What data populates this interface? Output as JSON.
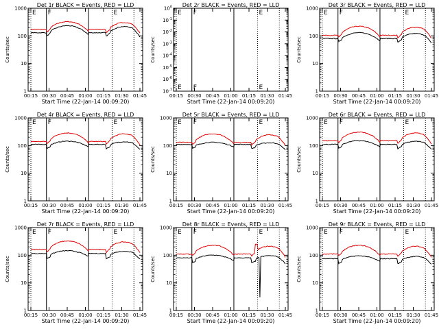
{
  "chart_data": {
    "type": "line",
    "layout": "3x3 grid of panels",
    "x_ticks": [
      "00:15",
      "00:30",
      "00:45",
      "01:00",
      "01:15",
      "01:30",
      "01:45"
    ],
    "xlabel": "Start Time (22-Jan-14 00:09:20)",
    "ylabel": "Counts/sec",
    "ylog": true,
    "colors": {
      "events": "#000000",
      "lld": "#e00000"
    },
    "series_names": [
      "BLACK = Events",
      "RED = LLD"
    ],
    "panels": [
      {
        "title": "Det 1r BLACK = Events, RED = LLD",
        "yticks": [
          "1",
          "10",
          "100",
          "1000"
        ],
        "ylim": [
          1,
          1000
        ],
        "markers": [
          {
            "label": "E",
            "x": 0.0
          },
          {
            "label": "F",
            "x": 0.143
          },
          {
            "label": "E",
            "x": 0.745
          }
        ],
        "solid_lines": [
          0.143,
          0.528
        ],
        "dotted_lines": [
          0.745,
          0.945
        ],
        "events": {
          "base": 130,
          "amp": 0.38,
          "dip": 0.27
        },
        "lld": {
          "base": 170,
          "amp": 0.42,
          "dip": 0.25
        }
      },
      {
        "title": "Det 2r BLACK = Events, RED = LLD",
        "yticks": [
          "10^-7",
          "10^-6",
          "10^-5",
          "10^-4",
          "10^-3",
          "10^-2",
          "10^-1",
          "10^0"
        ],
        "ylim": [
          1e-07,
          1
        ],
        "markers": [
          {
            "label": "E",
            "x": 0.0
          },
          {
            "label": "F",
            "x": 0.143
          },
          {
            "label": "E",
            "x": 0.745
          }
        ],
        "solid_lines": [
          0.143,
          0.528
        ],
        "dotted_lines": [
          0.745,
          0.945
        ],
        "events": null,
        "lld": null
      },
      {
        "title": "Det 3r BLACK = Events, RED = LLD",
        "yticks": [
          "1",
          "10",
          "100",
          "1000"
        ],
        "ylim": [
          1,
          1000
        ],
        "markers": [
          {
            "label": "E",
            "x": 0.0
          },
          {
            "label": "F",
            "x": 0.143
          },
          {
            "label": "E",
            "x": 0.745
          }
        ],
        "solid_lines": [
          0.143,
          0.528
        ],
        "dotted_lines": [
          0.745,
          0.945
        ],
        "events": {
          "base": 80,
          "amp": 0.32,
          "dip": 0.28
        },
        "lld": {
          "base": 105,
          "amp": 0.48,
          "dip": 0.22
        }
      },
      {
        "title": "Det 4r BLACK = Events, RED = LLD",
        "yticks": [
          "1",
          "10",
          "100",
          "1000"
        ],
        "ylim": [
          1,
          1000
        ],
        "markers": [
          {
            "label": "E",
            "x": 0.0
          },
          {
            "label": "F",
            "x": 0.143
          },
          {
            "label": "E",
            "x": 0.745
          }
        ],
        "solid_lines": [
          0.143,
          0.528
        ],
        "dotted_lines": [
          0.745,
          0.945
        ],
        "events": {
          "base": 110,
          "amp": 0.2,
          "dip": 0.3
        },
        "lld": {
          "base": 140,
          "amp": 0.45,
          "dip": 0.22
        }
      },
      {
        "title": "Det 5r BLACK = Events, RED = LLD",
        "yticks": [
          "1",
          "10",
          "100",
          "1000"
        ],
        "ylim": [
          1,
          1000
        ],
        "markers": [
          {
            "label": "E",
            "x": 0.0
          },
          {
            "label": "F",
            "x": 0.143
          },
          {
            "label": "E",
            "x": 0.745
          }
        ],
        "solid_lines": [
          0.143,
          0.528
        ],
        "dotted_lines": [
          0.745,
          0.945
        ],
        "events": {
          "base": 110,
          "amp": 0.15,
          "dip": 0.3
        },
        "lld": {
          "base": 130,
          "amp": 0.45,
          "dip": 0.22
        }
      },
      {
        "title": "Det 6r BLACK = Events, RED = LLD",
        "yticks": [
          "1",
          "10",
          "100",
          "1000"
        ],
        "ylim": [
          1,
          1000
        ],
        "markers": [
          {
            "label": "E",
            "x": 0.0
          },
          {
            "label": "F",
            "x": 0.143
          },
          {
            "label": "E",
            "x": 0.745
          }
        ],
        "solid_lines": [
          0.143,
          0.528
        ],
        "dotted_lines": [
          0.745,
          0.945
        ],
        "events": {
          "base": 110,
          "amp": 0.22,
          "dip": 0.3
        },
        "lld": {
          "base": 150,
          "amp": 0.45,
          "dip": 0.22
        }
      },
      {
        "title": "Det 7r BLACK = Events, RED = LLD",
        "yticks": [
          "1",
          "10",
          "100",
          "1000"
        ],
        "ylim": [
          1,
          1000
        ],
        "markers": [
          {
            "label": "E",
            "x": 0.0
          },
          {
            "label": "F",
            "x": 0.143
          },
          {
            "label": "E",
            "x": 0.745
          }
        ],
        "solid_lines": [
          0.143,
          0.528
        ],
        "dotted_lines": [
          0.745,
          0.945
        ],
        "events": {
          "base": 115,
          "amp": 0.2,
          "dip": 0.35
        },
        "lld": {
          "base": 160,
          "amp": 0.45,
          "dip": 0.22
        }
      },
      {
        "title": "Det 8r BLACK = Events, RED = LLD",
        "yticks": [
          "1",
          "10",
          "100",
          "1000"
        ],
        "ylim": [
          1,
          1000
        ],
        "markers": [
          {
            "label": "E",
            "x": 0.0
          },
          {
            "label": "F",
            "x": 0.143
          },
          {
            "label": "E",
            "x": 0.745
          }
        ],
        "solid_lines": [
          0.143,
          0.528
        ],
        "dotted_lines": [
          0.745,
          0.945
        ],
        "events": {
          "base": 80,
          "amp": 0.2,
          "dip": 0.35,
          "spike_down": {
            "x": 0.77,
            "value": 3
          }
        },
        "lld": {
          "base": 110,
          "amp": 0.45,
          "dip": 0.18,
          "spike_up": {
            "x": 0.73,
            "value": 250
          }
        }
      },
      {
        "title": "Det 9r BLACK = Events, RED = LLD",
        "yticks": [
          "1",
          "10",
          "100",
          "1000"
        ],
        "ylim": [
          1,
          1000
        ],
        "markers": [
          {
            "label": "E",
            "x": 0.0
          },
          {
            "label": "F",
            "x": 0.143
          },
          {
            "label": "E",
            "x": 0.745
          }
        ],
        "solid_lines": [
          0.143,
          0.528
        ],
        "dotted_lines": [
          0.745,
          0.945
        ],
        "events": {
          "base": 75,
          "amp": 0.2,
          "dip": 0.35
        },
        "lld": {
          "base": 110,
          "amp": 0.45,
          "dip": 0.2
        }
      }
    ]
  }
}
